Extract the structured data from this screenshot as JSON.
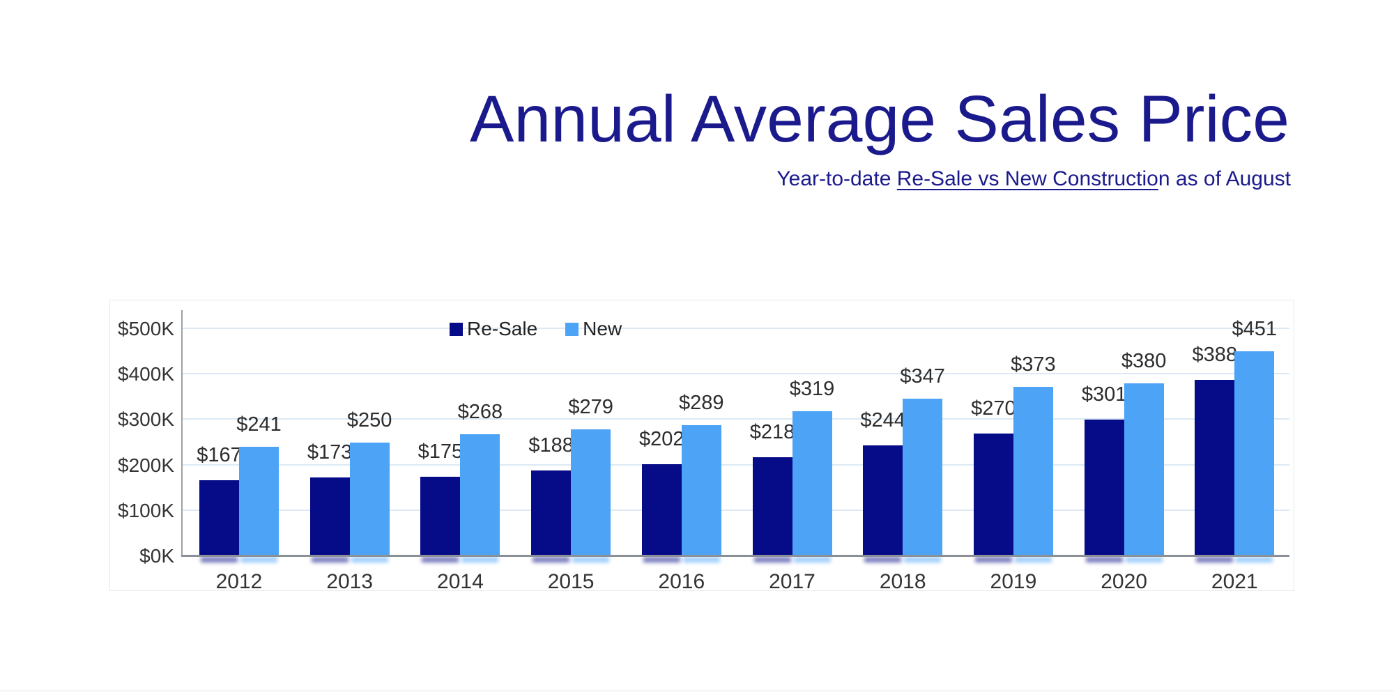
{
  "title": "Annual Average Sales Price",
  "subtitle": {
    "prefix": "Year-to-date ",
    "underlined": "Re-Sale vs New Constructio",
    "suffix": "n as of August"
  },
  "style": {
    "title_color": "#1B1A8C",
    "resale_color": "#060B87",
    "new_color": "#4DA3F6",
    "gridline_color": "#DCE9F4",
    "axis_color": "#8A9096",
    "label_color": "#2D2D2D",
    "background": "#FFFFFF"
  },
  "chart_data": {
    "type": "bar",
    "title": "Annual Average Sales Price",
    "subtitle": "Year-to-date Re-Sale vs New Construction as of August",
    "categories": [
      "2012",
      "2013",
      "2014",
      "2015",
      "2016",
      "2017",
      "2018",
      "2019",
      "2020",
      "2021"
    ],
    "series": [
      {
        "name": "Re-Sale",
        "color": "#060B87",
        "values": [
          167,
          173,
          175,
          188,
          202,
          218,
          244,
          270,
          301,
          388
        ]
      },
      {
        "name": "New",
        "color": "#4DA3F6",
        "values": [
          241,
          250,
          268,
          279,
          289,
          319,
          347,
          373,
          380,
          451
        ]
      }
    ],
    "value_prefix": "$",
    "value_unit": "K (thousands USD)",
    "xlabel": "",
    "ylabel": "",
    "ylim": [
      0,
      500
    ],
    "y_ticks": [
      "$0K",
      "$100K",
      "$200K",
      "$300K",
      "$400K",
      "$500K"
    ],
    "grid": true,
    "legend_position": "inside-top-center"
  }
}
